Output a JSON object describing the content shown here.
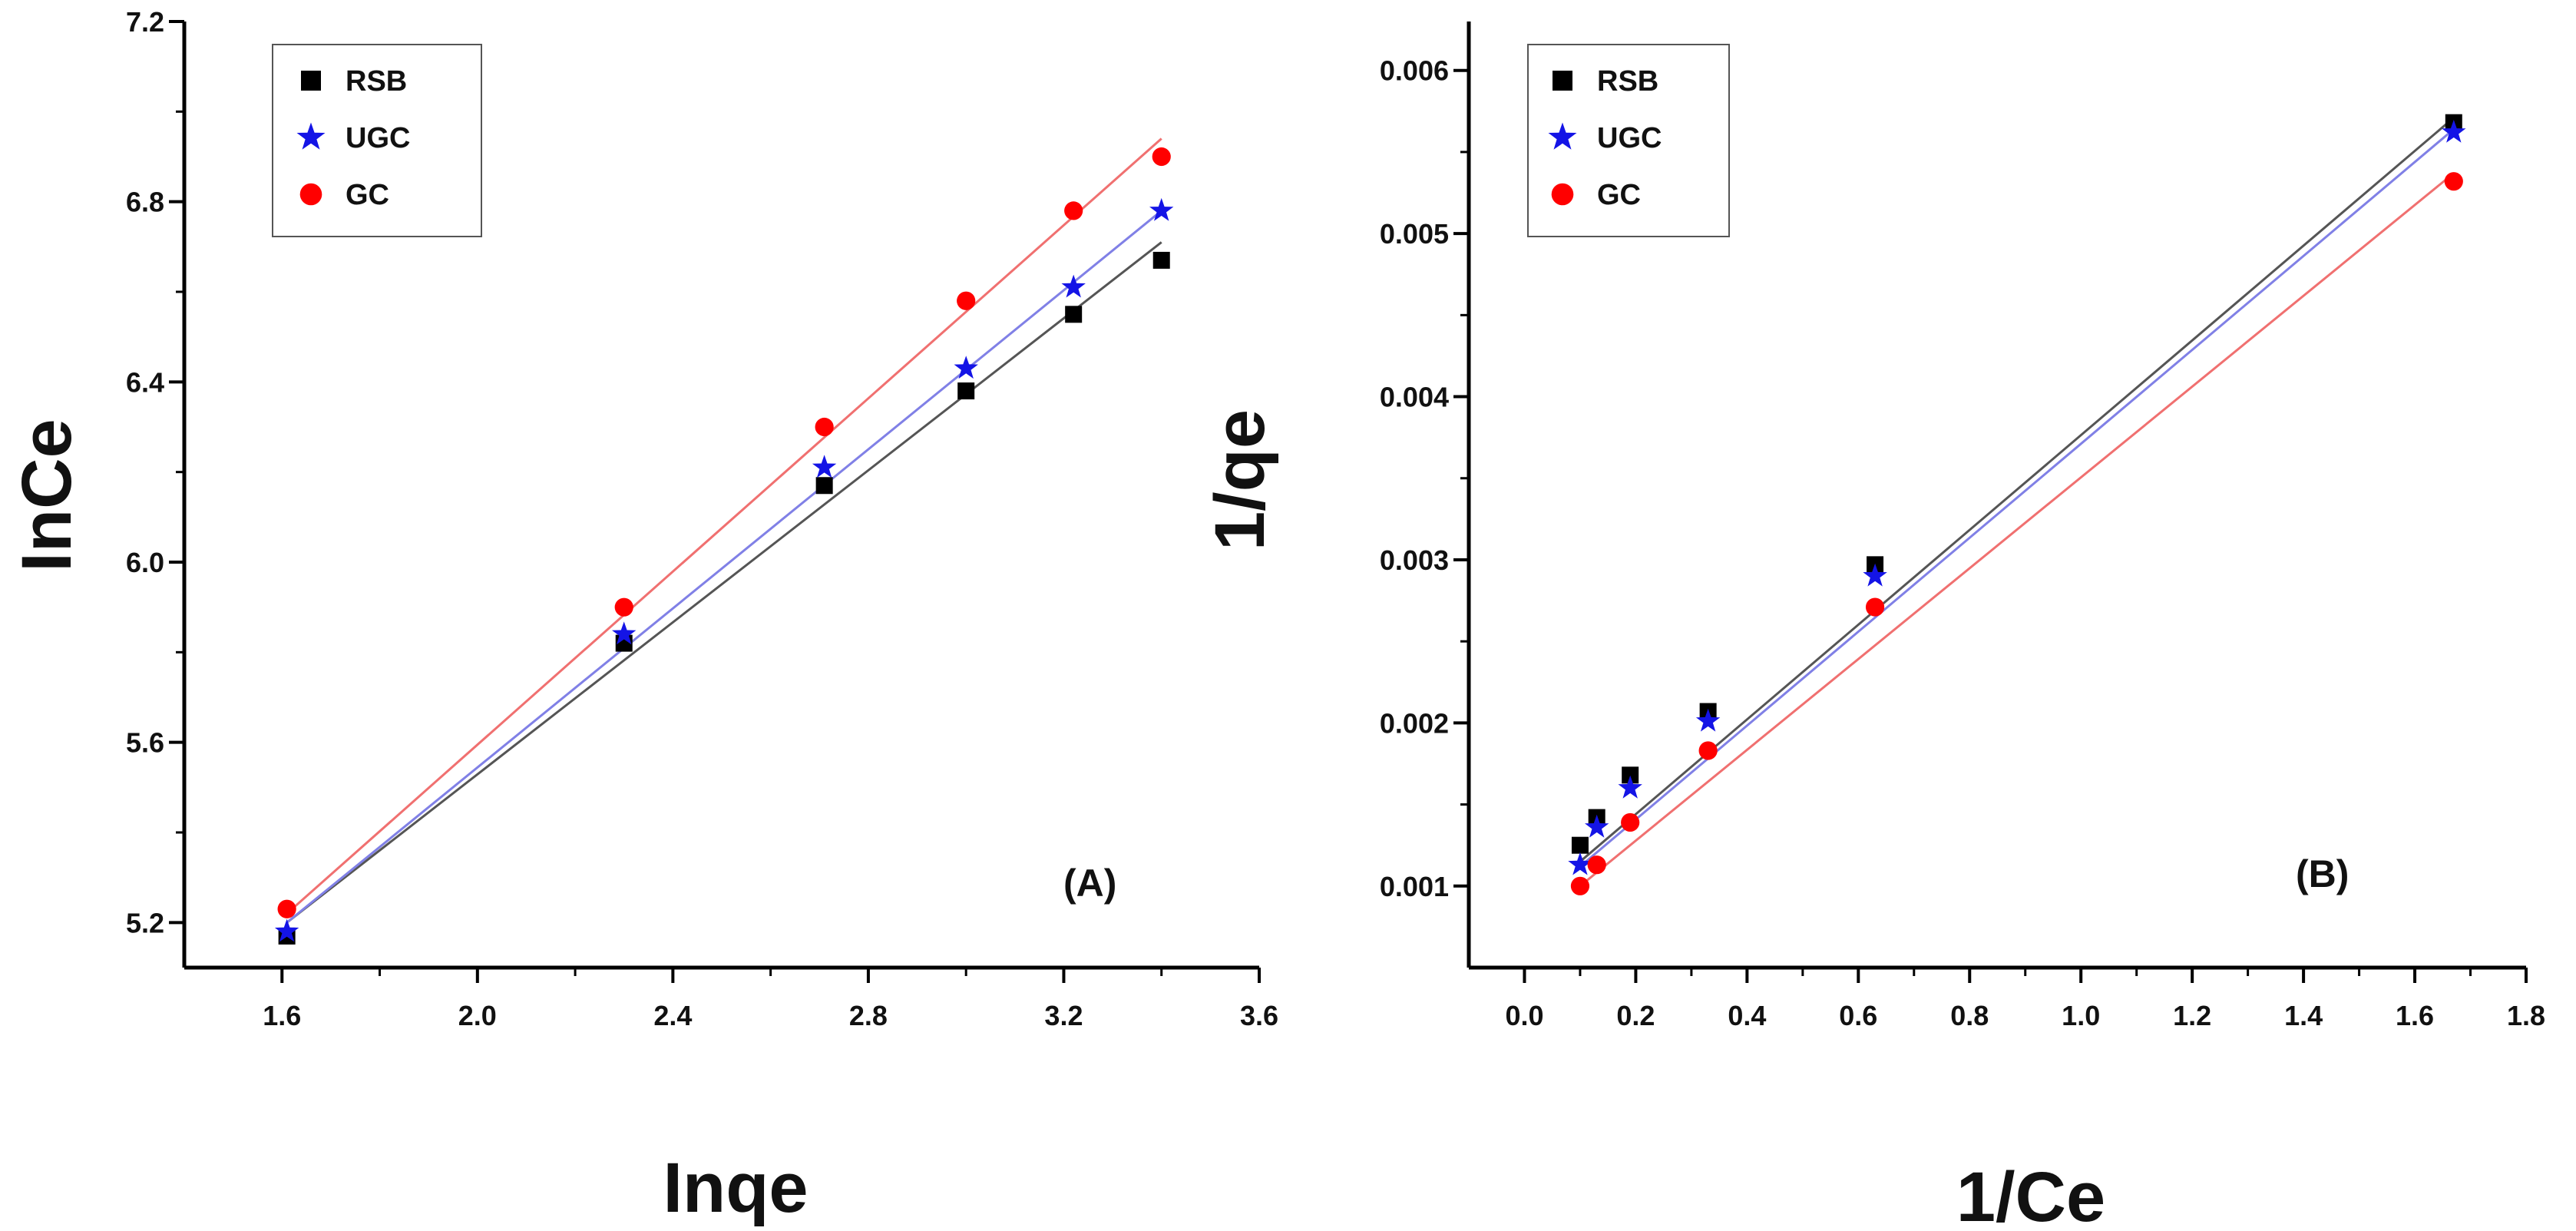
{
  "chart_data": [
    {
      "type": "scatter",
      "panel_label": "(A)",
      "xlabel": "Inqe",
      "ylabel": "InCe",
      "xlim": [
        1.4,
        3.6
      ],
      "ylim": [
        5.1,
        7.2
      ],
      "x_ticks": [
        1.6,
        2.0,
        2.4,
        2.8,
        3.2,
        3.6
      ],
      "y_ticks": [
        5.2,
        5.6,
        6.0,
        6.4,
        6.8,
        7.2
      ],
      "tick_decimals": 1,
      "legend_position": "top-left",
      "grid": false,
      "series": [
        {
          "name": "RSB",
          "marker": "square",
          "marker_color": "#000000",
          "line_color": "#555555",
          "x": [
            1.61,
            2.3,
            2.71,
            3.0,
            3.22,
            3.4
          ],
          "y": [
            5.17,
            5.82,
            6.17,
            6.38,
            6.55,
            6.67
          ],
          "fit": [
            [
              1.61,
              5.2
            ],
            [
              3.4,
              6.71
            ]
          ]
        },
        {
          "name": "UGC",
          "marker": "star",
          "marker_color": "#1414e6",
          "line_color": "#8080e6",
          "x": [
            1.61,
            2.3,
            2.71,
            3.0,
            3.22,
            3.4
          ],
          "y": [
            5.18,
            5.84,
            6.21,
            6.43,
            6.61,
            6.78
          ],
          "fit": [
            [
              1.61,
              5.2
            ],
            [
              3.4,
              6.78
            ]
          ]
        },
        {
          "name": "GC",
          "marker": "circle",
          "marker_color": "#ff0000",
          "line_color": "#f07070",
          "x": [
            1.61,
            2.3,
            2.71,
            3.0,
            3.22,
            3.4
          ],
          "y": [
            5.23,
            5.9,
            6.3,
            6.58,
            6.78,
            6.9
          ],
          "fit": [
            [
              1.61,
              5.22
            ],
            [
              3.4,
              6.94
            ]
          ]
        }
      ]
    },
    {
      "type": "scatter",
      "panel_label": "(B)",
      "xlabel": "1/Ce",
      "ylabel": "1/qe",
      "xlim": [
        -0.1,
        1.8
      ],
      "ylim": [
        0.0005,
        0.0063
      ],
      "x_ticks": [
        0.0,
        0.2,
        0.4,
        0.6,
        0.8,
        1.0,
        1.2,
        1.4,
        1.6,
        1.8
      ],
      "y_ticks": [
        0.001,
        0.002,
        0.003,
        0.004,
        0.005,
        0.006
      ],
      "x_tick_decimals": 1,
      "y_tick_decimals": 3,
      "legend_position": "top-left",
      "grid": false,
      "series": [
        {
          "name": "RSB",
          "marker": "square",
          "marker_color": "#000000",
          "line_color": "#555555",
          "x": [
            0.1,
            0.13,
            0.19,
            0.33,
            0.63,
            1.67
          ],
          "y": [
            0.00125,
            0.00142,
            0.00168,
            0.00207,
            0.00297,
            0.00568
          ],
          "fit": [
            [
              0.1,
              0.00115
            ],
            [
              1.67,
              0.00571
            ]
          ]
        },
        {
          "name": "UGC",
          "marker": "star",
          "marker_color": "#1414e6",
          "line_color": "#8080e6",
          "x": [
            0.1,
            0.13,
            0.19,
            0.33,
            0.63,
            1.67
          ],
          "y": [
            0.00113,
            0.00136,
            0.0016,
            0.00201,
            0.0029,
            0.00562
          ],
          "fit": [
            [
              0.1,
              0.00112
            ],
            [
              1.67,
              0.00564
            ]
          ]
        },
        {
          "name": "GC",
          "marker": "circle",
          "marker_color": "#ff0000",
          "line_color": "#f07070",
          "x": [
            0.1,
            0.13,
            0.19,
            0.33,
            0.63,
            1.67
          ],
          "y": [
            0.001,
            0.00113,
            0.00139,
            0.00183,
            0.00271,
            0.00532
          ],
          "fit": [
            [
              0.1,
              0.001
            ],
            [
              1.67,
              0.00537
            ]
          ]
        }
      ]
    }
  ]
}
